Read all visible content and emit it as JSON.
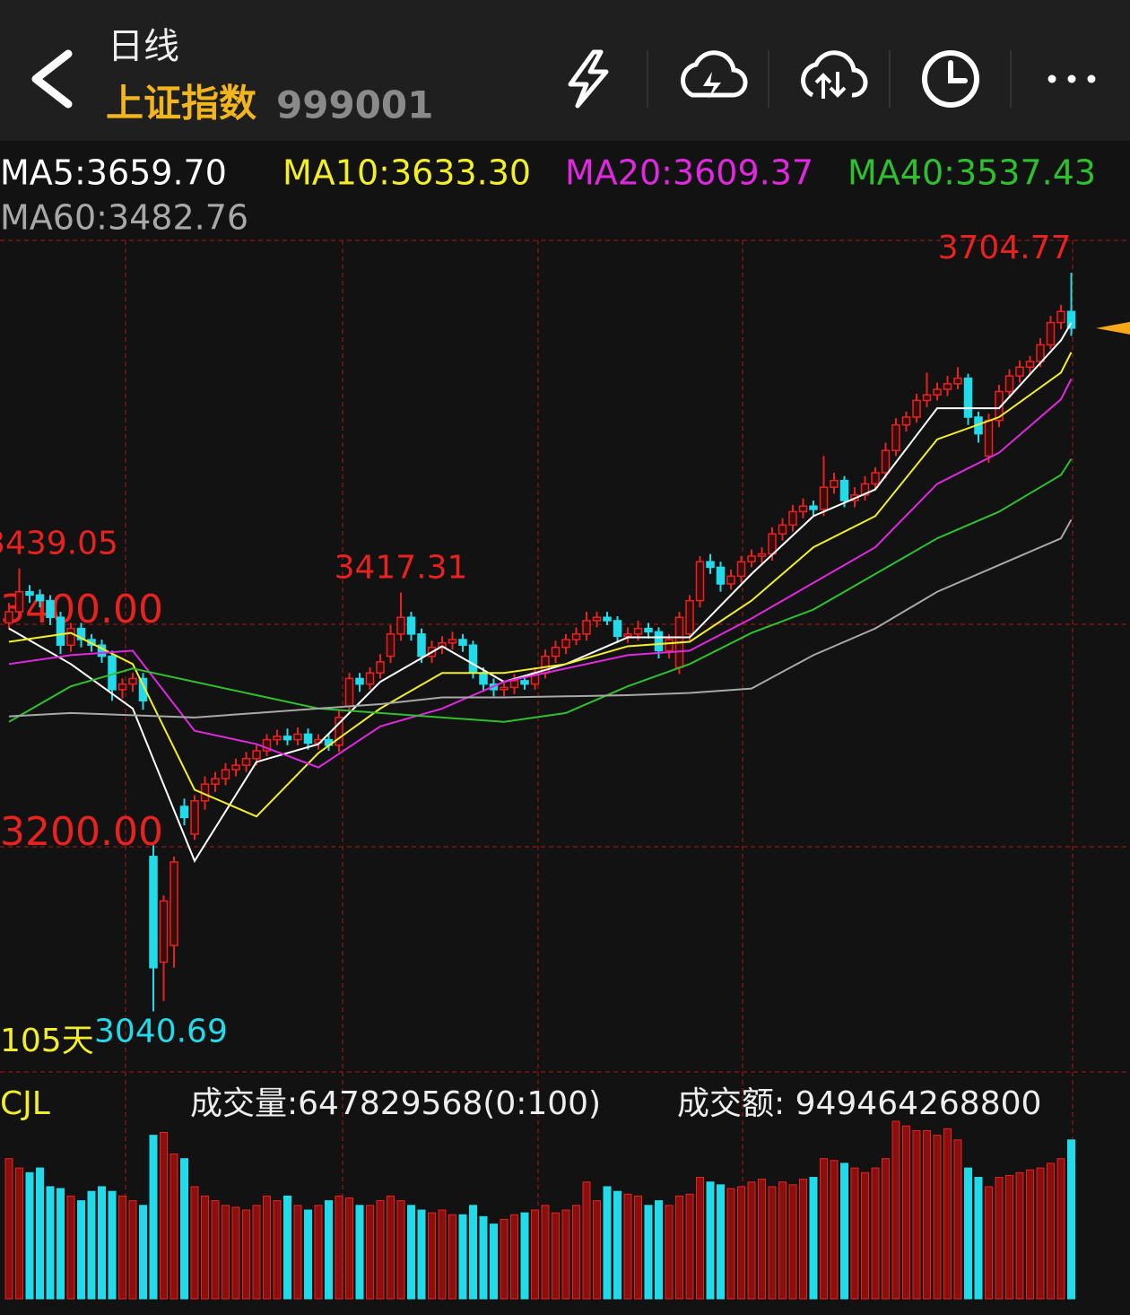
{
  "header": {
    "period": "日线",
    "name": "上证指数",
    "code": "999001"
  },
  "chart_data": {
    "type": "candlestick",
    "open": [
      3390,
      3400,
      3418,
      3415,
      3410,
      3395,
      3370,
      3385,
      3375,
      3370,
      3360,
      3330,
      3335,
      3340,
      3180,
      3085,
      3100,
      3225,
      3200,
      3230,
      3245,
      3250,
      3258,
      3262,
      3268,
      3275,
      3285,
      3288,
      3285,
      3290,
      3282,
      3285,
      3280,
      3315,
      3340,
      3335,
      3345,
      3360,
      3380,
      3395,
      3380,
      3360,
      3368,
      3372,
      3375,
      3370,
      3345,
      3335,
      3330,
      3332,
      3338,
      3335,
      3345,
      3360,
      3368,
      3375,
      3380,
      3392,
      3395,
      3392,
      3378,
      3380,
      3385,
      3382,
      3365,
      3350,
      3380,
      3410,
      3445,
      3440,
      3425,
      3432,
      3445,
      3450,
      3452,
      3470,
      3478,
      3490,
      3495,
      3492,
      3512,
      3518,
      3500,
      3505,
      3515,
      3525,
      3545,
      3568,
      3575,
      3590,
      3595,
      3600,
      3605,
      3610,
      3575,
      3540,
      3572,
      3598,
      3612,
      3620,
      3625,
      3640,
      3660,
      3670
    ],
    "high": [
      3408,
      3439.05,
      3424,
      3420,
      3415,
      3400,
      3390,
      3390,
      3380,
      3375,
      3365,
      3340,
      3345,
      3345,
      3190,
      3145,
      3180,
      3232,
      3235,
      3252,
      3256,
      3264,
      3268,
      3274,
      3280,
      3290,
      3294,
      3295,
      3296,
      3295,
      3290,
      3290,
      3312,
      3345,
      3345,
      3350,
      3362,
      3388,
      3417.31,
      3400,
      3385,
      3374,
      3378,
      3382,
      3380,
      3374,
      3350,
      3340,
      3338,
      3344,
      3342,
      3350,
      3366,
      3374,
      3380,
      3386,
      3400,
      3400,
      3400,
      3396,
      3386,
      3392,
      3390,
      3386,
      3380,
      3400,
      3415,
      3450,
      3452,
      3445,
      3438,
      3450,
      3456,
      3458,
      3476,
      3484,
      3496,
      3502,
      3500,
      3540,
      3525,
      3522,
      3512,
      3522,
      3530,
      3552,
      3574,
      3580,
      3596,
      3615,
      3606,
      3612,
      3620,
      3614,
      3580,
      3578,
      3604,
      3618,
      3626,
      3630,
      3646,
      3666,
      3676,
      3704.77
    ],
    "low": [
      3384,
      3394,
      3408,
      3404,
      3388,
      3362,
      3364,
      3368,
      3364,
      3354,
      3320,
      3322,
      3328,
      3312,
      3040.69,
      3050,
      3080,
      3208,
      3195,
      3222,
      3238,
      3244,
      3252,
      3256,
      3262,
      3270,
      3280,
      3280,
      3280,
      3276,
      3276,
      3275,
      3274,
      3308,
      3328,
      3330,
      3340,
      3354,
      3374,
      3374,
      3354,
      3354,
      3362,
      3366,
      3364,
      3340,
      3328,
      3324,
      3324,
      3326,
      3330,
      3330,
      3340,
      3354,
      3362,
      3370,
      3374,
      3386,
      3388,
      3372,
      3372,
      3374,
      3376,
      3358,
      3358,
      3344,
      3374,
      3404,
      3434,
      3418,
      3420,
      3426,
      3440,
      3444,
      3446,
      3464,
      3472,
      3484,
      3486,
      3486,
      3506,
      3494,
      3494,
      3500,
      3510,
      3520,
      3540,
      3562,
      3570,
      3584,
      3590,
      3594,
      3600,
      3568,
      3552,
      3534,
      3566,
      3592,
      3606,
      3614,
      3620,
      3636,
      3654,
      3648
    ],
    "close": [
      3400,
      3418,
      3415,
      3410,
      3395,
      3370,
      3385,
      3375,
      3370,
      3360,
      3330,
      3335,
      3340,
      3320,
      3080,
      3140,
      3175,
      3215,
      3230,
      3245,
      3250,
      3258,
      3262,
      3268,
      3275,
      3285,
      3288,
      3285,
      3290,
      3282,
      3285,
      3280,
      3305,
      3340,
      3335,
      3345,
      3355,
      3380,
      3395,
      3380,
      3360,
      3368,
      3372,
      3375,
      3370,
      3345,
      3335,
      3330,
      3332,
      3338,
      3335,
      3345,
      3360,
      3368,
      3375,
      3380,
      3392,
      3395,
      3392,
      3378,
      3380,
      3385,
      3382,
      3365,
      3375,
      3395,
      3410,
      3445,
      3440,
      3425,
      3432,
      3445,
      3450,
      3452,
      3470,
      3478,
      3490,
      3495,
      3492,
      3512,
      3518,
      3500,
      3505,
      3515,
      3525,
      3545,
      3568,
      3575,
      3590,
      3595,
      3600,
      3605,
      3610,
      3575,
      3560,
      3572,
      3598,
      3612,
      3620,
      3625,
      3640,
      3660,
      3670,
      3655
    ],
    "ylim": [
      2986.3,
      3733.9
    ],
    "yticks": [
      {
        "value": 3400,
        "label": "3400.00"
      },
      {
        "value": 3200,
        "label": "3200.00"
      }
    ],
    "colors": {
      "up": "#e8231f",
      "down": "#22dbea"
    },
    "high_labels": [
      {
        "label": "3704.77",
        "value": 3704.77
      },
      {
        "label": "3417.31",
        "value": 3417.31
      },
      {
        "label": "3439.05",
        "value": 3439.05
      }
    ],
    "low_labels": [
      {
        "label": "3040.69",
        "value": 3040.69
      }
    ],
    "period_label": "105天",
    "ma": {
      "x": [
        0,
        6,
        12,
        18,
        24,
        30,
        36,
        42,
        48,
        54,
        60,
        66,
        72,
        78,
        84,
        90,
        96,
        102,
        103
      ],
      "series": [
        {
          "name": "MA5:3659.70",
          "color": "#ffffff",
          "values": [
            3385,
            3353,
            3313,
            3176,
            3265,
            3281,
            3337,
            3369,
            3337,
            3353,
            3377,
            3377,
            3434,
            3486,
            3510,
            3583,
            3583,
            3644,
            3659.7
          ]
        },
        {
          "name": "MA10:3633.30",
          "color": "#f2ee2a",
          "values": [
            3373,
            3381,
            3353,
            3240,
            3216,
            3273,
            3313,
            3345,
            3345,
            3353,
            3369,
            3373,
            3410,
            3458,
            3486,
            3555,
            3575,
            3615,
            3633.3
          ]
        },
        {
          "name": "MA20:3609.37",
          "color": "#e028e0",
          "values": [
            3353,
            3361,
            3365,
            3293,
            3281,
            3260,
            3297,
            3313,
            3337,
            3349,
            3361,
            3365,
            3394,
            3426,
            3458,
            3515,
            3543,
            3591,
            3609.37
          ]
        },
        {
          "name": "MA40:3537.43",
          "color": "#2fc02f",
          "values": [
            3301,
            3333,
            3349,
            3337,
            3325,
            3313,
            3309,
            3305,
            3301,
            3309,
            3333,
            3353,
            3381,
            3402,
            3434,
            3466,
            3490,
            3523,
            3537.43
          ]
        },
        {
          "name": "MA60:3482.76",
          "color": "#a8a8a8",
          "values": [
            3306,
            3309,
            3307,
            3305,
            3309,
            3313,
            3317,
            3323,
            3323,
            3324,
            3325,
            3327,
            3331,
            3361,
            3385,
            3418,
            3442,
            3466,
            3482.76
          ]
        }
      ]
    },
    "volume": {
      "title": "CJL",
      "volume_text": "成交量:647829568(0:100)",
      "amount_text": "成交额: 949464268800",
      "values": [
        571500000,
        533400000,
        514350000,
        533400000,
        457200000,
        449580000,
        419100000,
        400050000,
        438150000,
        457200000,
        438150000,
        419100000,
        400050000,
        381000000,
        666750000,
        678180000,
        590550000,
        571500000,
        457200000,
        419100000,
        400050000,
        381000000,
        373380000,
        361950000,
        381000000,
        419100000,
        400050000,
        419100000,
        381000000,
        361950000,
        381000000,
        400050000,
        419100000,
        411480000,
        381000000,
        381000000,
        400050000,
        419100000,
        400050000,
        381000000,
        361950000,
        350520000,
        361950000,
        342900000,
        342900000,
        381000000,
        335280000,
        304800000,
        323850000,
        342900000,
        350520000,
        361950000,
        381000000,
        350520000,
        361950000,
        381000000,
        476250000,
        400050000,
        457200000,
        438150000,
        426720000,
        419100000,
        381000000,
        400050000,
        381000000,
        419100000,
        426720000,
        495300000,
        476250000,
        464820000,
        449580000,
        457200000,
        476250000,
        487680000,
        457200000,
        476250000,
        464820000,
        487680000,
        495300000,
        571500000,
        563880000,
        552450000,
        533400000,
        514350000,
        533400000,
        571500000,
        723900000,
        704850000,
        685800000,
        685800000,
        666750000,
        693420000,
        647700000,
        533400000,
        495300000,
        457200000,
        495300000,
        502920000,
        514350000,
        525780000,
        533400000,
        552450000,
        571500000,
        647829568
      ]
    }
  }
}
